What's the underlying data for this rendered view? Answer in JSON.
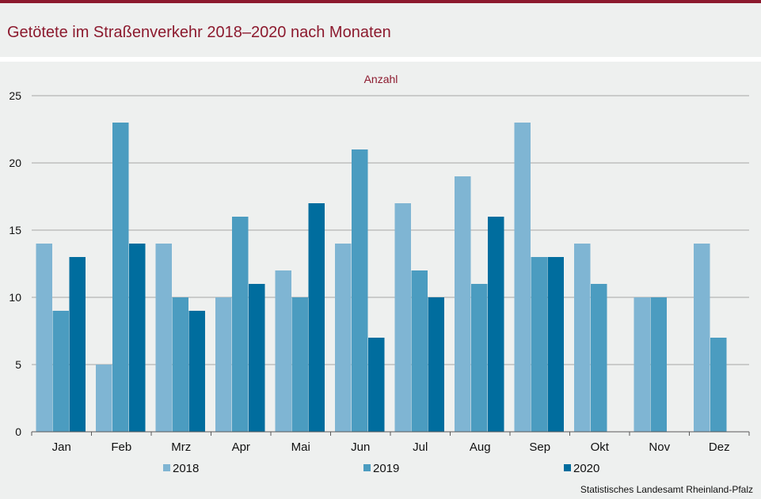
{
  "title": "Getötete im Straßenverkehr 2018–2020 nach Monaten",
  "source": "Statistisches Landesamt Rheinland-Pfalz",
  "colors": {
    "accent": "#8c1a2e",
    "series": [
      "#7fb5d3",
      "#4b9cc0",
      "#006d9e"
    ],
    "grid": "#a6a6a6",
    "axis": "#595959"
  },
  "chart_data": {
    "type": "bar",
    "ylabel": "Anzahl",
    "ylim": [
      0,
      25
    ],
    "yticks": [
      0,
      5,
      10,
      15,
      20,
      25
    ],
    "grid": true,
    "legend": "bottom",
    "categories": [
      "Jan",
      "Feb",
      "Mrz",
      "Apr",
      "Mai",
      "Jun",
      "Jul",
      "Aug",
      "Sep",
      "Okt",
      "Nov",
      "Dez"
    ],
    "series": [
      {
        "name": "2018",
        "values": [
          14,
          5,
          14,
          10,
          12,
          14,
          17,
          19,
          23,
          14,
          10,
          14
        ]
      },
      {
        "name": "2019",
        "values": [
          9,
          23,
          10,
          16,
          10,
          21,
          12,
          11,
          13,
          11,
          10,
          7
        ]
      },
      {
        "name": "2020",
        "values": [
          13,
          14,
          9,
          11,
          17,
          7,
          10,
          16,
          13,
          null,
          null,
          null
        ]
      }
    ]
  }
}
